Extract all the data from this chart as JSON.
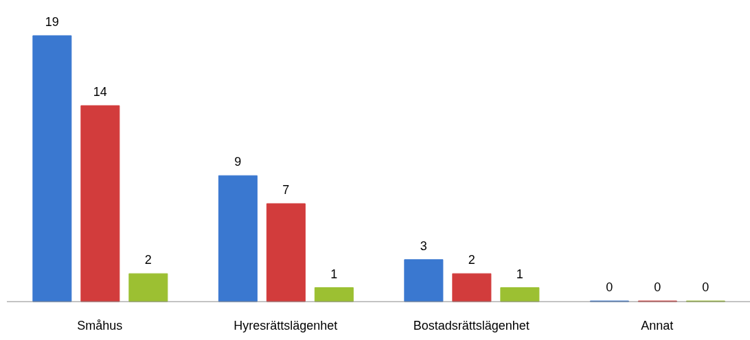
{
  "chart_data": {
    "type": "bar",
    "categories": [
      "Småhus",
      "Hyresrättslägenhet",
      "Bostadsrättslägenhet",
      "Annat"
    ],
    "series": [
      {
        "color": "#3a78d0",
        "values": [
          19,
          9,
          3,
          0
        ]
      },
      {
        "color": "#d23c3c",
        "values": [
          14,
          7,
          2,
          0
        ]
      },
      {
        "color": "#9cc032",
        "values": [
          2,
          1,
          1,
          0
        ]
      }
    ],
    "data_labels": true,
    "grid": false,
    "legend": false
  }
}
